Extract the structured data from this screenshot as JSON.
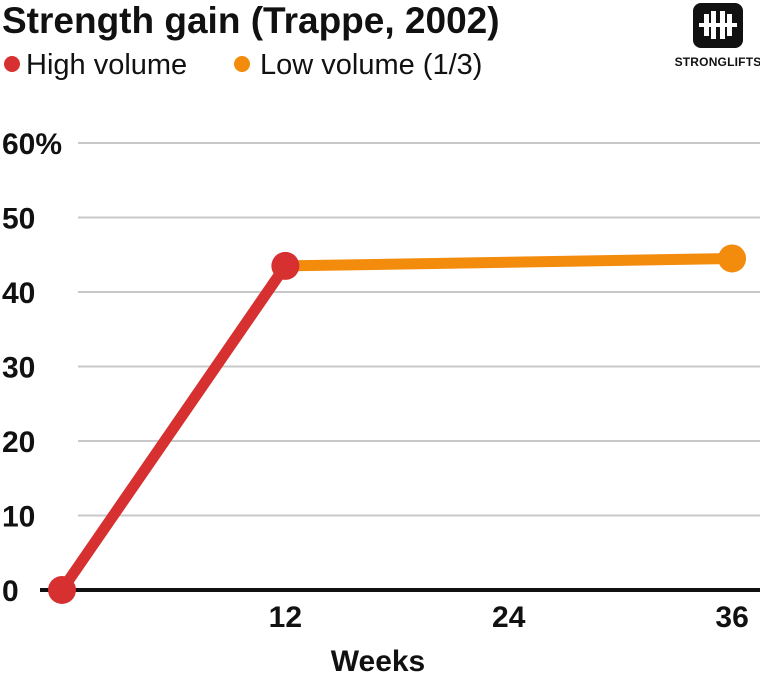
{
  "chart_data": {
    "type": "line",
    "title": "Strength gain (Trappe, 2002)",
    "xlabel": "Weeks",
    "ylabel": "",
    "x_ticks": [
      12,
      24,
      36
    ],
    "xlim": [
      0,
      37.5
    ],
    "y_ticks": [
      "0",
      "10",
      "20",
      "30",
      "40",
      "50",
      "60%"
    ],
    "ylim": [
      0,
      60
    ],
    "grid": true,
    "legend_position": "top-left",
    "series": [
      {
        "name": "High volume",
        "color": "#d63031",
        "points": [
          {
            "x": 0,
            "y": 0
          },
          {
            "x": 12,
            "y": 43.5
          }
        ]
      },
      {
        "name": "Low volume (1/3)",
        "color": "#f38b0c",
        "points": [
          {
            "x": 12,
            "y": 43.5
          },
          {
            "x": 36,
            "y": 44.5
          }
        ]
      }
    ]
  },
  "brand": {
    "name": "STRONGLIFTS",
    "logo_icon": "barbell-logo-icon"
  }
}
